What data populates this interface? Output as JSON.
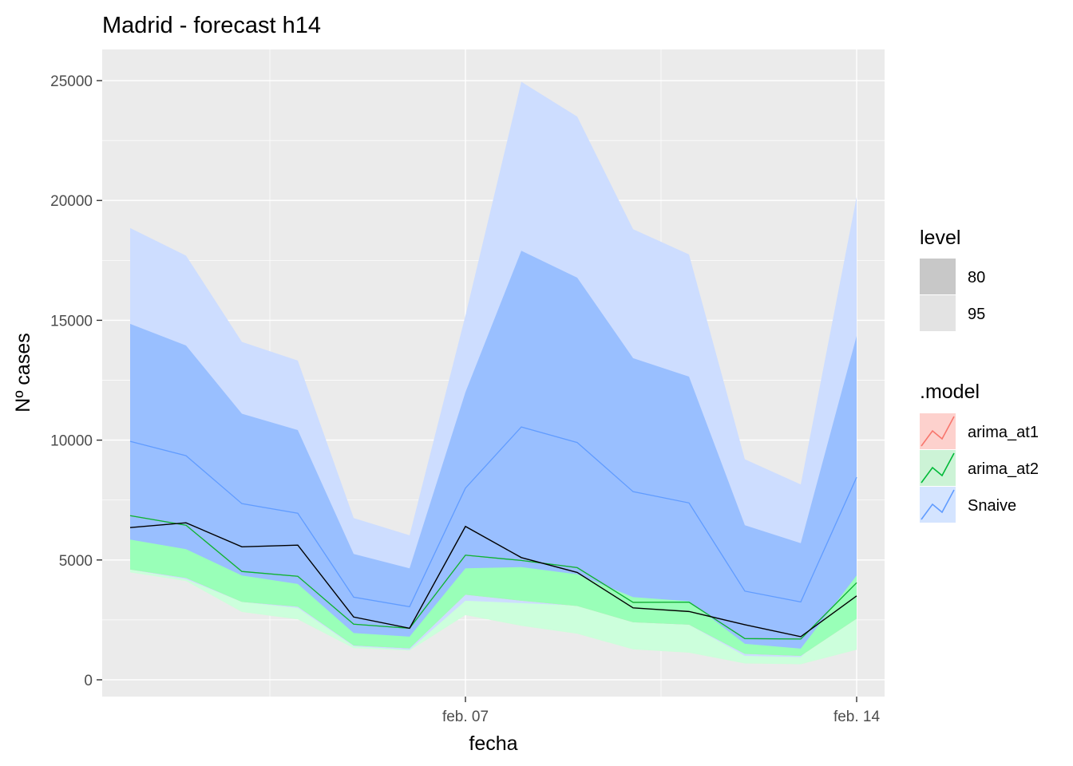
{
  "chart_data": {
    "type": "line",
    "title": "Madrid - forecast h14",
    "xlabel": "fecha",
    "ylabel": "Nº cases",
    "x": [
      "2021-02-01",
      "2021-02-02",
      "2021-02-03",
      "2021-02-04",
      "2021-02-05",
      "2021-02-06",
      "2021-02-07",
      "2021-02-08",
      "2021-02-09",
      "2021-02-10",
      "2021-02-11",
      "2021-02-12",
      "2021-02-13",
      "2021-02-14"
    ],
    "x_ticks": [
      {
        "date": "2021-02-07",
        "label": "feb. 07"
      },
      {
        "date": "2021-02-14",
        "label": "feb. 14"
      }
    ],
    "xlim": [
      "2021-01-31T12:00",
      "2021-02-14T12:00"
    ],
    "y_ticks": [
      0,
      5000,
      10000,
      15000,
      20000,
      25000
    ],
    "ylim": [
      -700,
      26300
    ],
    "grid": true,
    "background": "#ebebeb",
    "series": [
      {
        "name": "arima_at1",
        "color": "#f8766d",
        "values": [
          6850,
          6450,
          4520,
          4320,
          2320,
          2150,
          5200,
          4980,
          4680,
          3230,
          3240,
          1720,
          1700,
          4050
        ],
        "lo80": [
          4600,
          4250,
          3250,
          3050,
          1430,
          1310,
          3550,
          3300,
          3080,
          2400,
          2300,
          1080,
          1000,
          2550
        ],
        "hi80": [
          9100,
          8650,
          5790,
          5590,
          3210,
          2990,
          6850,
          6660,
          6280,
          4060,
          4180,
          2360,
          2400,
          5550
        ],
        "lo95": [
          4480,
          4120,
          2830,
          2520,
          1320,
          1220,
          2700,
          2250,
          1920,
          1270,
          1130,
          680,
          650,
          1250
        ],
        "hi95": [
          9220,
          8780,
          6210,
          6120,
          3320,
          3080,
          7700,
          7710,
          7440,
          5190,
          5350,
          2760,
          2750,
          6850
        ]
      },
      {
        "name": "arima_at2",
        "color": "#00ba38",
        "values": [
          6850,
          6450,
          4520,
          4320,
          2320,
          2150,
          5200,
          4980,
          4680,
          3230,
          3240,
          1720,
          1700,
          4050
        ],
        "lo80": [
          4600,
          4250,
          3250,
          3050,
          1430,
          1310,
          3550,
          3300,
          3080,
          2400,
          2300,
          1080,
          1000,
          2550
        ],
        "hi80": [
          9100,
          8650,
          5790,
          5590,
          3210,
          2990,
          6850,
          6660,
          6280,
          4060,
          4180,
          2360,
          2400,
          5550
        ],
        "lo95": [
          4480,
          4120,
          2830,
          2520,
          1320,
          1220,
          2700,
          2250,
          1920,
          1270,
          1130,
          680,
          650,
          1250
        ],
        "hi95": [
          9220,
          8780,
          6210,
          6120,
          3320,
          3080,
          7700,
          7710,
          7440,
          5190,
          5350,
          2760,
          2750,
          6850
        ]
      },
      {
        "name": "Snaive",
        "color": "#619cff",
        "values": [
          9950,
          9350,
          7350,
          6950,
          3450,
          3050,
          8000,
          10550,
          9900,
          7850,
          7380,
          3700,
          3250,
          8450
        ],
        "lo80": [
          5850,
          5450,
          4350,
          4000,
          1950,
          1800,
          4650,
          4700,
          4400,
          3450,
          3280,
          1500,
          1300,
          4350
        ],
        "hi80": [
          14850,
          13950,
          11100,
          10420,
          5250,
          4650,
          12000,
          17900,
          16780,
          13420,
          12650,
          6450,
          5700,
          14350
        ],
        "lo95": [
          4600,
          4200,
          3250,
          3000,
          1400,
          1250,
          3300,
          3200,
          3100,
          2400,
          2300,
          1000,
          950,
          3050
        ],
        "hi95": [
          18850,
          17700,
          14100,
          13320,
          6750,
          6030,
          15200,
          24950,
          23500,
          18800,
          17750,
          9200,
          8150,
          20150
        ]
      }
    ],
    "actual": {
      "color": "#000000",
      "values": [
        6350,
        6550,
        5550,
        5620,
        2620,
        2150,
        6400,
        5100,
        4480,
        3000,
        2850,
        2300,
        1800,
        3500
      ]
    },
    "legend": {
      "placement": "right",
      "level": {
        "title": "level",
        "items": [
          {
            "label": "80",
            "color": "#c8c8c8"
          },
          {
            "label": "95",
            "color": "#e3e3e3"
          }
        ]
      },
      "model": {
        "title": ".model",
        "items": [
          {
            "label": "arima_at1",
            "color": "#f8766d",
            "fill": "#fdd1cd"
          },
          {
            "label": "arima_at2",
            "color": "#00ba38",
            "fill": "#ccf3d6"
          },
          {
            "label": "Snaive",
            "color": "#619cff",
            "fill": "#d4e4ff"
          }
        ]
      }
    },
    "band_colors": {
      "arima_at1": {
        "p95": "#ffe0dc",
        "p80": "#fbb4ad"
      },
      "arima_at2": {
        "p95": "#ccffdc",
        "p80": "#99ffb8"
      },
      "Snaive": {
        "p95": "#cdddff",
        "p80": "#99bfff"
      }
    }
  }
}
